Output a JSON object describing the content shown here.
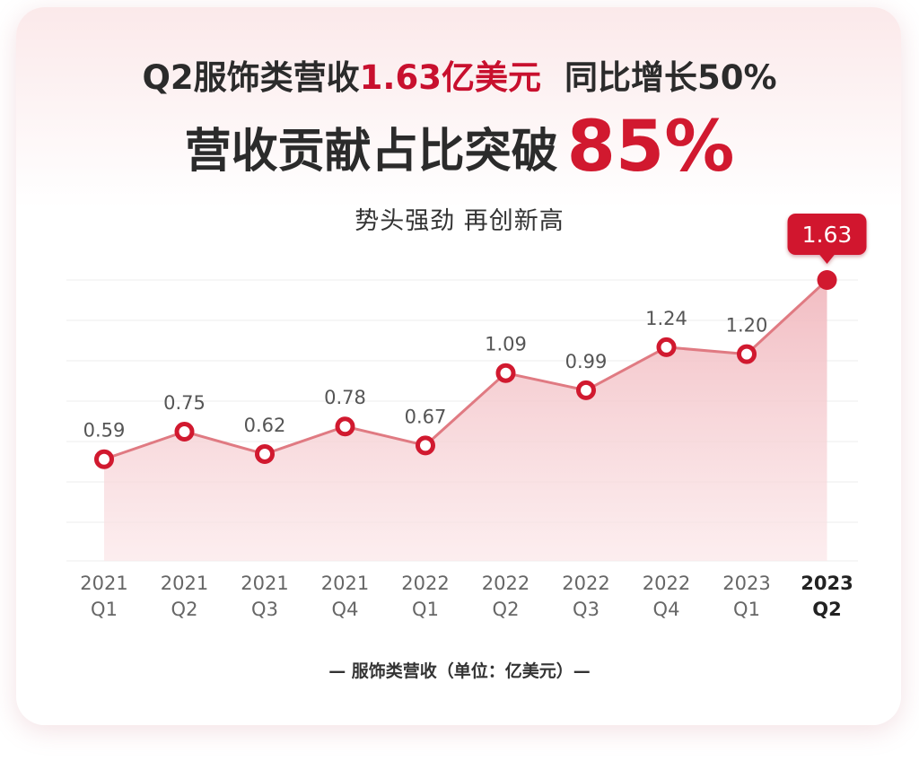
{
  "header": {
    "line1_prefix": "Q2服饰类营收",
    "line1_amount": "1.63亿美元",
    "line1_growth": "同比增长50%",
    "line2_text": "营收贡献占比突破",
    "line2_percent": "85%",
    "subtitle": "势头强劲 再创新高"
  },
  "legend": {
    "series_label": "— 服饰类营收（单位：亿美元）—"
  },
  "colors": {
    "accent": "#d1192f",
    "line": "#e07a82",
    "area_top": "#f3c3c8",
    "grid": "#ececec"
  },
  "chart_data": {
    "type": "area",
    "categories": [
      [
        "2021",
        "Q1"
      ],
      [
        "2021",
        "Q2"
      ],
      [
        "2021",
        "Q3"
      ],
      [
        "2021",
        "Q4"
      ],
      [
        "2022",
        "Q1"
      ],
      [
        "2022",
        "Q2"
      ],
      [
        "2022",
        "Q3"
      ],
      [
        "2022",
        "Q4"
      ],
      [
        "2023",
        "Q1"
      ],
      [
        "2023",
        "Q2"
      ]
    ],
    "series": [
      {
        "name": "服饰类营收（单位：亿美元）",
        "values": [
          0.59,
          0.75,
          0.62,
          0.78,
          0.67,
          1.09,
          0.99,
          1.24,
          1.2,
          1.63
        ]
      }
    ],
    "value_labels": [
      "0.59",
      "0.75",
      "0.62",
      "0.78",
      "0.67",
      "1.09",
      "0.99",
      "1.24",
      "1.20",
      "1.63"
    ],
    "highlight_index": 9,
    "grid": true,
    "legend": "bottom"
  }
}
